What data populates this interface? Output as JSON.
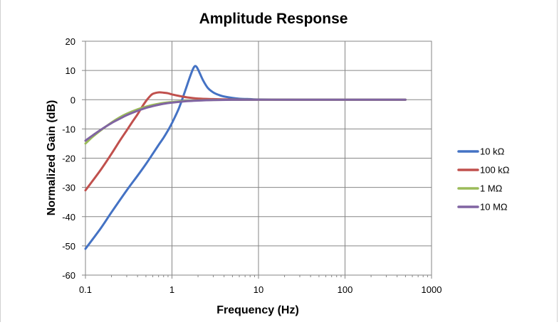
{
  "chart_data": {
    "type": "line",
    "title": "Amplitude Response",
    "xlabel": "Frequency (Hz)",
    "ylabel": "Normalized Gain (dB)",
    "x_scale": "log",
    "xlim": [
      0.1,
      1000
    ],
    "ylim": [
      -60,
      20
    ],
    "x_ticks": [
      0.1,
      1,
      10,
      100,
      1000
    ],
    "x_tick_labels": [
      "0.1",
      "1",
      "10",
      "100",
      "1000"
    ],
    "y_ticks": [
      -60,
      -50,
      -40,
      -30,
      -20,
      -10,
      0,
      10,
      20
    ],
    "y_tick_labels": [
      "-60",
      "-50",
      "-40",
      "-30",
      "-20",
      "-10",
      "0",
      "10",
      "20"
    ],
    "grid": true,
    "legend_position": "right",
    "series": [
      {
        "name": "10 kΩ",
        "color": "#4472c4",
        "points": [
          [
            0.1,
            -51
          ],
          [
            0.15,
            -44
          ],
          [
            0.2,
            -38.5
          ],
          [
            0.3,
            -31
          ],
          [
            0.4,
            -26
          ],
          [
            0.5,
            -22
          ],
          [
            0.6,
            -18.5
          ],
          [
            0.7,
            -15.5
          ],
          [
            0.8,
            -13
          ],
          [
            0.9,
            -10.5
          ],
          [
            1.0,
            -8
          ],
          [
            1.2,
            -3
          ],
          [
            1.4,
            2.5
          ],
          [
            1.6,
            7.5
          ],
          [
            1.75,
            10.5
          ],
          [
            1.85,
            11.5
          ],
          [
            1.95,
            11
          ],
          [
            2.1,
            9
          ],
          [
            2.3,
            6.5
          ],
          [
            2.6,
            4
          ],
          [
            3.0,
            2.5
          ],
          [
            3.5,
            1.6
          ],
          [
            4,
            1.1
          ],
          [
            5,
            0.6
          ],
          [
            6,
            0.35
          ],
          [
            8,
            0.2
          ],
          [
            10,
            0.1
          ],
          [
            20,
            0.02
          ],
          [
            50,
            0
          ],
          [
            100,
            0
          ],
          [
            500,
            0
          ]
        ]
      },
      {
        "name": "100 kΩ",
        "color": "#c0504d",
        "points": [
          [
            0.1,
            -31
          ],
          [
            0.15,
            -24
          ],
          [
            0.2,
            -18.5
          ],
          [
            0.25,
            -14
          ],
          [
            0.3,
            -10.5
          ],
          [
            0.35,
            -7.5
          ],
          [
            0.4,
            -5
          ],
          [
            0.45,
            -2.5
          ],
          [
            0.5,
            -0.5
          ],
          [
            0.55,
            1
          ],
          [
            0.6,
            2
          ],
          [
            0.7,
            2.5
          ],
          [
            0.8,
            2.4
          ],
          [
            0.9,
            2.2
          ],
          [
            1.0,
            1.8
          ],
          [
            1.2,
            1.3
          ],
          [
            1.5,
            0.8
          ],
          [
            2,
            0.4
          ],
          [
            3,
            0.2
          ],
          [
            5,
            0.05
          ],
          [
            10,
            0
          ],
          [
            50,
            0
          ],
          [
            500,
            0
          ]
        ]
      },
      {
        "name": "1 MΩ",
        "color": "#9bbb59",
        "points": [
          [
            0.1,
            -15
          ],
          [
            0.12,
            -12.8
          ],
          [
            0.15,
            -10.5
          ],
          [
            0.2,
            -7.8
          ],
          [
            0.25,
            -6
          ],
          [
            0.3,
            -4.8
          ],
          [
            0.4,
            -3.3
          ],
          [
            0.5,
            -2.4
          ],
          [
            0.6,
            -1.8
          ],
          [
            0.8,
            -1.1
          ],
          [
            1,
            -0.8
          ],
          [
            1.5,
            -0.4
          ],
          [
            2,
            -0.25
          ],
          [
            3,
            -0.1
          ],
          [
            5,
            -0.03
          ],
          [
            10,
            0
          ],
          [
            100,
            0
          ],
          [
            500,
            0
          ]
        ]
      },
      {
        "name": "10 MΩ",
        "color": "#8064a2",
        "points": [
          [
            0.1,
            -14
          ],
          [
            0.12,
            -12.3
          ],
          [
            0.15,
            -10.3
          ],
          [
            0.2,
            -8
          ],
          [
            0.25,
            -6.5
          ],
          [
            0.3,
            -5.3
          ],
          [
            0.4,
            -3.8
          ],
          [
            0.5,
            -2.8
          ],
          [
            0.6,
            -2.2
          ],
          [
            0.8,
            -1.4
          ],
          [
            1,
            -1
          ],
          [
            1.5,
            -0.5
          ],
          [
            2,
            -0.3
          ],
          [
            3,
            -0.12
          ],
          [
            5,
            -0.04
          ],
          [
            10,
            0
          ],
          [
            100,
            0
          ],
          [
            500,
            0
          ]
        ]
      }
    ]
  }
}
